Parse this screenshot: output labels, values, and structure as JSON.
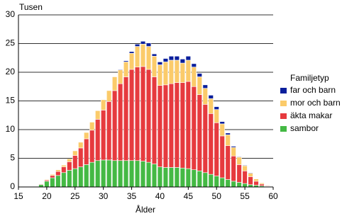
{
  "chart_data": {
    "type": "stacked-bar",
    "y_axis_label": "Tusen",
    "x_axis_label": "Ålder",
    "legend_title": "Familjetyp",
    "x": [
      18,
      19,
      20,
      21,
      22,
      23,
      24,
      25,
      26,
      27,
      28,
      29,
      30,
      31,
      32,
      33,
      34,
      35,
      36,
      37,
      38,
      39,
      40,
      41,
      42,
      43,
      44,
      45,
      46,
      47,
      48,
      49,
      50,
      51,
      52,
      53,
      54,
      55,
      56,
      57,
      58,
      59
    ],
    "series": [
      {
        "name": "sambor",
        "color": "#44b944",
        "values": [
          0.1,
          0.4,
          1.0,
          1.6,
          2.0,
          2.5,
          2.9,
          3.2,
          3.5,
          3.9,
          4.3,
          4.6,
          4.7,
          4.7,
          4.6,
          4.6,
          4.6,
          4.6,
          4.6,
          4.5,
          4.3,
          4.0,
          3.5,
          3.4,
          3.4,
          3.4,
          3.3,
          3.2,
          3.0,
          2.8,
          2.5,
          2.2,
          1.9,
          1.6,
          1.3,
          1.0,
          0.8,
          0.6,
          0.4,
          0.3,
          0.2,
          0.1
        ]
      },
      {
        "name": "äkta makar",
        "color": "#e63a3e",
        "values": [
          0,
          0.1,
          0.2,
          0.4,
          0.7,
          1.0,
          1.5,
          2.3,
          3.3,
          4.5,
          5.6,
          7.2,
          8.7,
          10.2,
          12.2,
          13.4,
          14.6,
          15.9,
          16.3,
          16.5,
          16.2,
          15.2,
          14.2,
          14.4,
          14.6,
          14.8,
          14.9,
          15.2,
          14.5,
          13.3,
          11.9,
          10.6,
          9.3,
          7.3,
          5.9,
          4.4,
          3.1,
          2.2,
          1.4,
          0.7,
          0.3,
          0.1
        ]
      },
      {
        "name": "mor och barn",
        "color": "#fbcb6a",
        "values": [
          0,
          0,
          0.1,
          0.2,
          0.3,
          0.3,
          0.5,
          0.8,
          1.0,
          1.1,
          1.4,
          1.5,
          1.8,
          1.9,
          2.4,
          2.4,
          2.6,
          2.8,
          3.6,
          3.9,
          4.0,
          3.6,
          3.6,
          4.0,
          4.1,
          3.9,
          3.4,
          3.7,
          3.4,
          3.1,
          2.8,
          2.6,
          2.3,
          2.1,
          1.9,
          1.5,
          1.3,
          0.9,
          0.6,
          0.4,
          0.2,
          0.1
        ]
      },
      {
        "name": "far och barn",
        "color": "#0a1f9c",
        "values": [
          0,
          0,
          0,
          0,
          0,
          0,
          0,
          0,
          0,
          0,
          0,
          0,
          0,
          0,
          0,
          0.1,
          0.2,
          0.3,
          0.4,
          0.5,
          0.6,
          0.4,
          0.5,
          0.6,
          0.7,
          0.7,
          0.7,
          0.7,
          0.6,
          0.6,
          0.6,
          0.6,
          0.5,
          0.4,
          0.3,
          0.2,
          0.1,
          0.1,
          0.1,
          0,
          0,
          0
        ]
      }
    ],
    "xlim": [
      15,
      60
    ],
    "xticks": [
      15,
      20,
      25,
      30,
      35,
      40,
      45,
      50,
      55,
      60
    ],
    "ylim": [
      0,
      30
    ],
    "yticks": [
      0,
      5,
      10,
      15,
      20,
      25,
      30
    ],
    "grid": true,
    "legend": "right"
  }
}
